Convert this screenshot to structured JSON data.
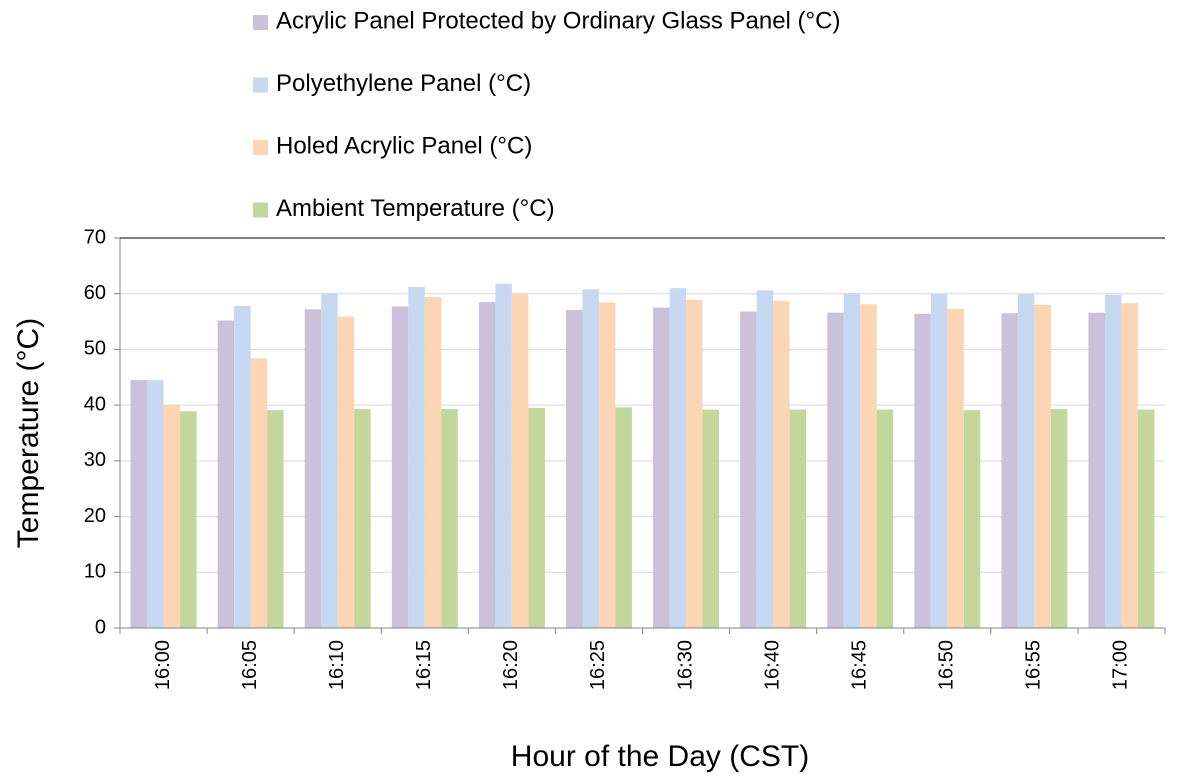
{
  "chart_data": {
    "type": "bar",
    "xlabel": "Hour of the Day (CST)",
    "ylabel": "Temperature (°C)",
    "categories": [
      "16:00",
      "16:05",
      "16:10",
      "16:15",
      "16:20",
      "16:25",
      "16:30",
      "16:40",
      "16:45",
      "16:50",
      "16:55",
      "17:00"
    ],
    "series": [
      {
        "name": "Acrylic Panel Protected by Ordinary Glass Panel (°C)",
        "color": "#ccc1da",
        "values": [
          44.5,
          55.2,
          57.2,
          57.7,
          58.5,
          57.1,
          57.5,
          56.8,
          56.6,
          56.4,
          56.5,
          56.6
        ]
      },
      {
        "name": "Polyethylene Panel (°C)",
        "color": "#c6d9f1",
        "values": [
          44.5,
          57.8,
          60.1,
          61.2,
          61.8,
          60.8,
          61.0,
          60.6,
          60.1,
          60.0,
          60.0,
          59.8
        ]
      },
      {
        "name": "Holed Acrylic Panel (°C)",
        "color": "#fcd5b5",
        "values": [
          40.0,
          48.4,
          55.9,
          59.4,
          60.1,
          58.4,
          58.9,
          58.7,
          58.1,
          57.3,
          58.0,
          58.3
        ]
      },
      {
        "name": "Ambient Temperature (°C)",
        "color": "#c3d69b",
        "values": [
          38.9,
          39.1,
          39.3,
          39.3,
          39.5,
          39.6,
          39.2,
          39.2,
          39.2,
          39.1,
          39.3,
          39.2
        ]
      }
    ],
    "ylim": [
      0,
      70
    ],
    "yticks": [
      0,
      10,
      20,
      30,
      40,
      50,
      60,
      70
    ],
    "grid": true,
    "legend": "top"
  }
}
